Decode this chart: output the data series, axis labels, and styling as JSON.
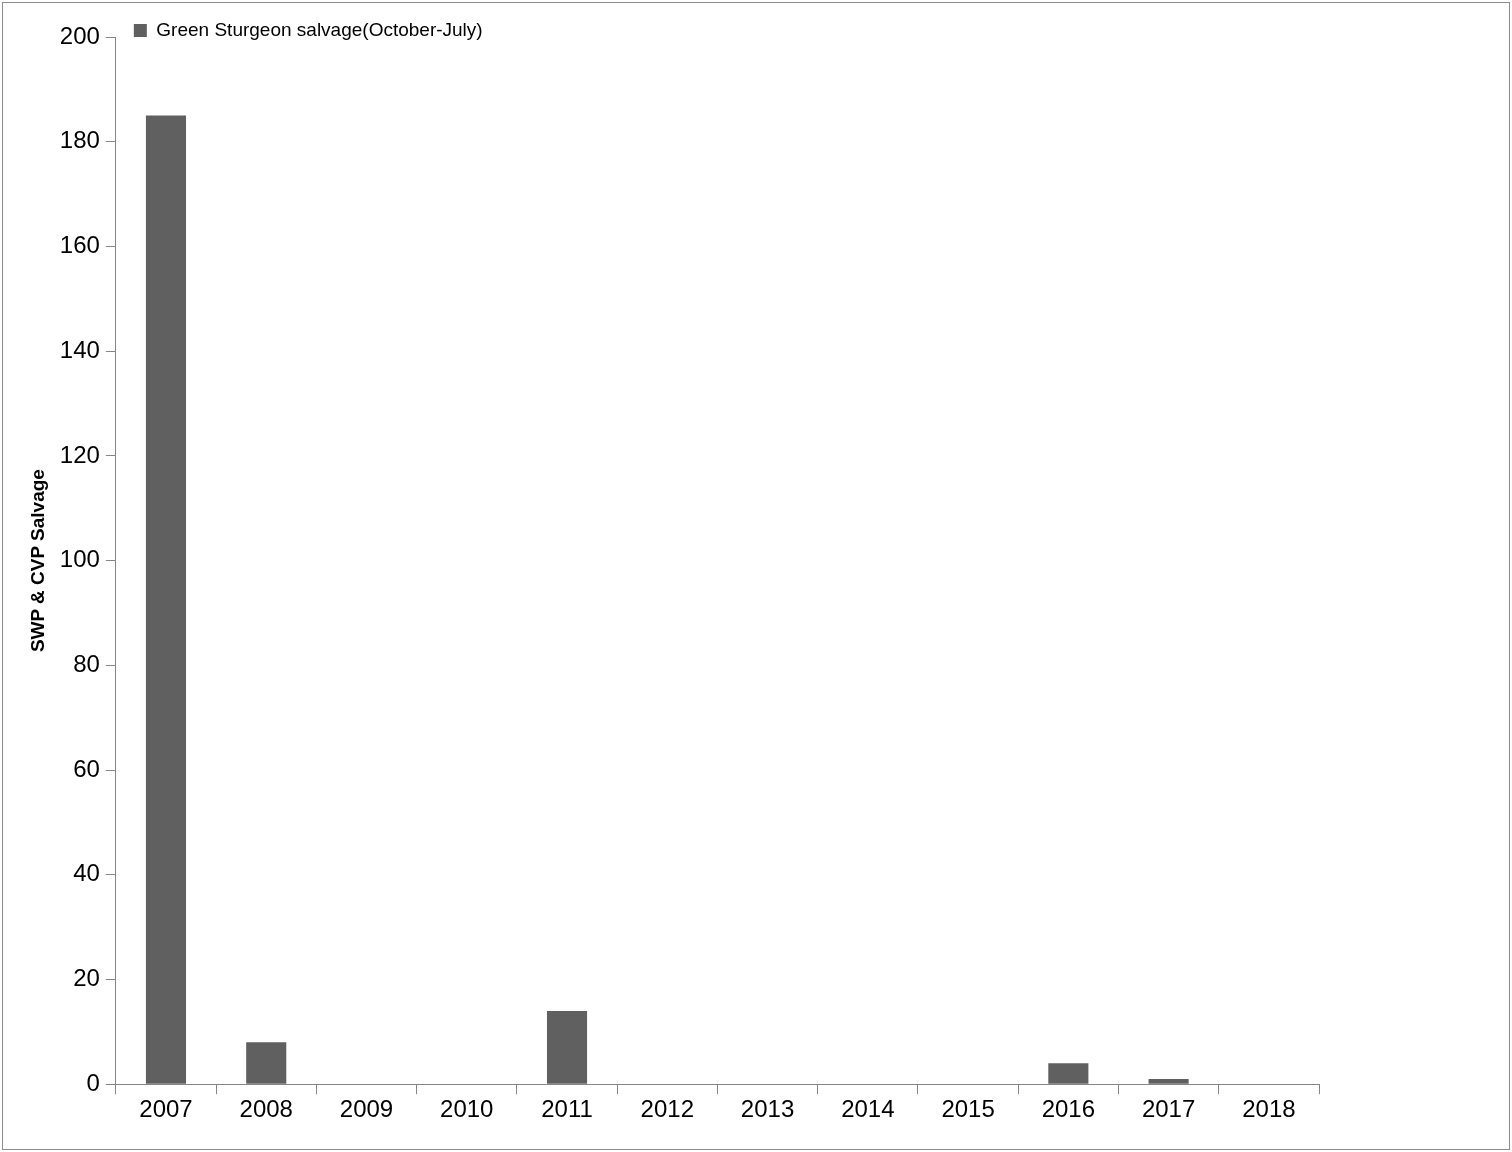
{
  "chart_data": {
    "type": "bar",
    "ylabel": "SWP & CVP Salvage",
    "categories": [
      "2007",
      "2008",
      "2009",
      "2010",
      "2011",
      "2012",
      "2013",
      "2014",
      "2015",
      "2016",
      "2017",
      "2018"
    ],
    "series": [
      {
        "name": "Green Sturgeon salvage(October-July)",
        "color": "#606060",
        "values": [
          185,
          8,
          0,
          0,
          14,
          0,
          0,
          0,
          0,
          4,
          1,
          0
        ]
      }
    ],
    "ylim": [
      0,
      200
    ],
    "yticks": [
      0,
      20,
      40,
      60,
      80,
      100,
      120,
      140,
      160,
      180,
      200
    ],
    "grid": false,
    "legend": "top left"
  }
}
